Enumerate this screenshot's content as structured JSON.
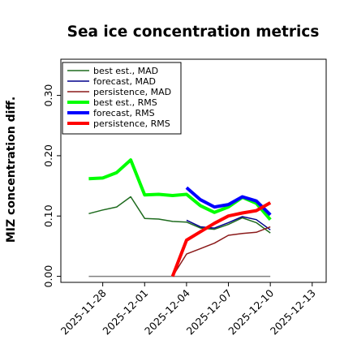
{
  "chart_data": {
    "type": "line",
    "title": "Sea ice concentration metrics",
    "ylabel": "MIZ concentration diff.",
    "xlabel": "",
    "ylim": [
      -0.01,
      0.36
    ],
    "xlim": [
      "2025-11-25",
      "2025-12-14"
    ],
    "yticks": [
      0.0,
      0.1,
      0.2,
      0.3
    ],
    "ytick_labels": [
      "0.00",
      "0.10",
      "0.20",
      "0.30"
    ],
    "xticks": [
      "2025-11-28",
      "2025-12-01",
      "2025-12-04",
      "2025-12-07",
      "2025-12-10",
      "2025-12-13"
    ],
    "highlighted_xtick": "2025-12-04",
    "highlight_color": "#228B22",
    "grid": false,
    "legend_position": "top-left",
    "zero_line": {
      "y": 0.0,
      "from": "2025-11-27",
      "to": "2025-12-10",
      "color": "#808080"
    },
    "series": [
      {
        "name": "best est., MAD",
        "color": "#1e6b1e",
        "width": 1.5,
        "x": [
          "2025-11-27",
          "2025-11-28",
          "2025-11-29",
          "2025-11-30",
          "2025-12-01",
          "2025-12-02",
          "2025-12-03",
          "2025-12-04",
          "2025-12-05",
          "2025-12-06",
          "2025-12-07",
          "2025-12-08",
          "2025-12-09",
          "2025-12-10"
        ],
        "y": [
          0.104,
          0.11,
          0.115,
          0.132,
          0.096,
          0.095,
          0.091,
          0.09,
          0.08,
          0.078,
          0.086,
          0.097,
          0.089,
          0.072
        ]
      },
      {
        "name": "forecast,  MAD",
        "color": "#00008b",
        "width": 1.5,
        "x": [
          "2025-12-04",
          "2025-12-05",
          "2025-12-06",
          "2025-12-07",
          "2025-12-08",
          "2025-12-09",
          "2025-12-10"
        ],
        "y": [
          0.093,
          0.082,
          0.08,
          0.089,
          0.099,
          0.094,
          0.077
        ]
      },
      {
        "name": "persistence, MAD",
        "color": "#8b1a1a",
        "width": 1.5,
        "x": [
          "2025-12-03",
          "2025-12-04",
          "2025-12-05",
          "2025-12-06",
          "2025-12-07",
          "2025-12-08",
          "2025-12-09",
          "2025-12-10"
        ],
        "y": [
          0.0,
          0.037,
          0.046,
          0.055,
          0.068,
          0.071,
          0.073,
          0.082
        ]
      },
      {
        "name": "best est., RMS",
        "color": "#00ff00",
        "width": 4,
        "x": [
          "2025-11-27",
          "2025-11-28",
          "2025-11-29",
          "2025-11-30",
          "2025-12-01",
          "2025-12-02",
          "2025-12-03",
          "2025-12-04",
          "2025-12-05",
          "2025-12-06",
          "2025-12-07",
          "2025-12-08",
          "2025-12-09",
          "2025-12-10"
        ],
        "y": [
          0.162,
          0.163,
          0.172,
          0.193,
          0.135,
          0.136,
          0.134,
          0.136,
          0.117,
          0.106,
          0.115,
          0.131,
          0.121,
          0.094
        ]
      },
      {
        "name": "forecast,  RMS",
        "color": "#0000ff",
        "width": 4,
        "x": [
          "2025-12-04",
          "2025-12-05",
          "2025-12-06",
          "2025-12-07",
          "2025-12-08",
          "2025-12-09",
          "2025-12-10"
        ],
        "y": [
          0.147,
          0.127,
          0.115,
          0.119,
          0.132,
          0.125,
          0.102
        ]
      },
      {
        "name": "persistence, RMS",
        "color": "#ff0000",
        "width": 4,
        "x": [
          "2025-12-03",
          "2025-12-04",
          "2025-12-05",
          "2025-12-06",
          "2025-12-07",
          "2025-12-08",
          "2025-12-09",
          "2025-12-10"
        ],
        "y": [
          0.0,
          0.06,
          0.074,
          0.088,
          0.1,
          0.105,
          0.109,
          0.122
        ]
      }
    ]
  }
}
